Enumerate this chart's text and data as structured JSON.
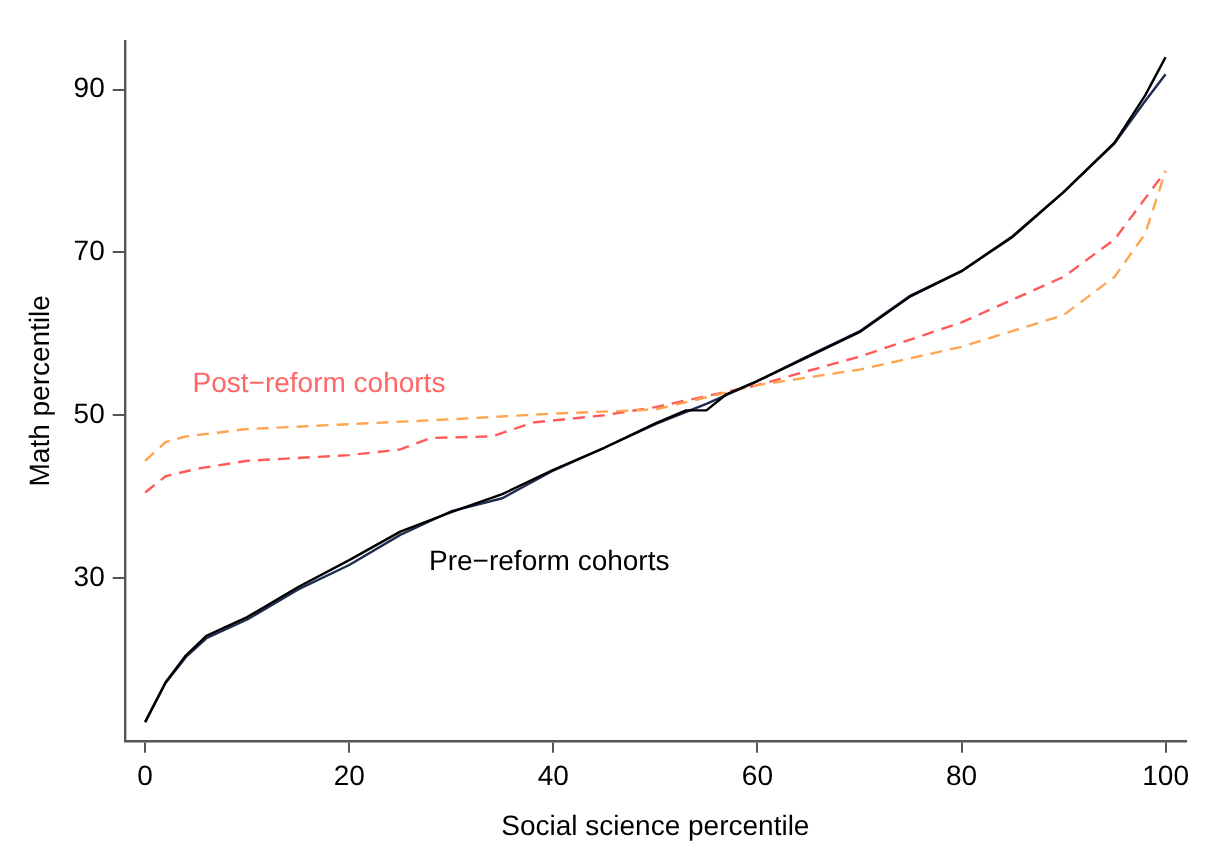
{
  "chart_data": {
    "type": "line",
    "xlabel": "Social science percentile",
    "ylabel": "Math percentile",
    "xlim": [
      -2,
      102
    ],
    "xticks": [
      0,
      20,
      40,
      60,
      80,
      100
    ],
    "ylim": [
      10,
      96
    ],
    "yticks": [
      30,
      50,
      70,
      90
    ],
    "grid": false,
    "legend": false,
    "marker": "none",
    "annotations": [
      "Post−reform cohorts",
      "Pre−reform cohorts"
    ],
    "series": [
      {
        "color": "#000000",
        "line_style": "solid",
        "x": [
          0,
          2,
          4,
          6,
          10,
          15,
          20,
          25,
          30,
          35,
          40,
          45,
          50,
          53,
          55,
          57,
          60,
          65,
          70,
          75,
          80,
          85,
          90,
          95,
          98,
          100
        ],
        "values": [
          12.3,
          17.2,
          20.5,
          22.9,
          25.2,
          28.9,
          32.2,
          35.7,
          38.1,
          40.3,
          43.3,
          46,
          49,
          50.6,
          50.6,
          52.6,
          54.2,
          57.2,
          60.2,
          64.6,
          67.7,
          71.9,
          77.4,
          83.5,
          89.3,
          94
        ]
      },
      {
        "color": "#1f2d50",
        "line_style": "solid",
        "x": [
          0,
          2,
          4,
          6,
          10,
          15,
          20,
          25,
          30,
          35,
          40,
          45,
          50,
          55,
          60,
          65,
          70,
          75,
          80,
          85,
          90,
          95,
          98,
          100
        ],
        "values": [
          12.3,
          17.1,
          20.3,
          22.6,
          24.9,
          28.6,
          31.6,
          35.3,
          38.2,
          39.8,
          43.2,
          46,
          48.9,
          51.4,
          54.2,
          57.3,
          60.3,
          64.7,
          67.7,
          72,
          77.4,
          83.4,
          88.6,
          91.9
        ]
      },
      {
        "color": "#ffa54f",
        "line_style": "dashed",
        "x": [
          0,
          2,
          4,
          10,
          20,
          30,
          40,
          50,
          60,
          70,
          80,
          90,
          95,
          98,
          100
        ],
        "values": [
          44.4,
          46.7,
          47.4,
          48.3,
          48.9,
          49.5,
          50.2,
          50.7,
          53.7,
          55.6,
          58.4,
          62.3,
          67,
          72.3,
          80
        ]
      },
      {
        "color": "#ff5a5a",
        "line_style": "dashed",
        "x": [
          0,
          2,
          5,
          10,
          20,
          25,
          28,
          34,
          38,
          45,
          50,
          60,
          70,
          80,
          90,
          95,
          100
        ],
        "values": [
          40.5,
          42.5,
          43.4,
          44.4,
          45.1,
          45.8,
          47.2,
          47.4,
          49.1,
          50,
          51,
          53.7,
          57.2,
          61.4,
          67,
          71.6,
          80
        ]
      }
    ]
  }
}
